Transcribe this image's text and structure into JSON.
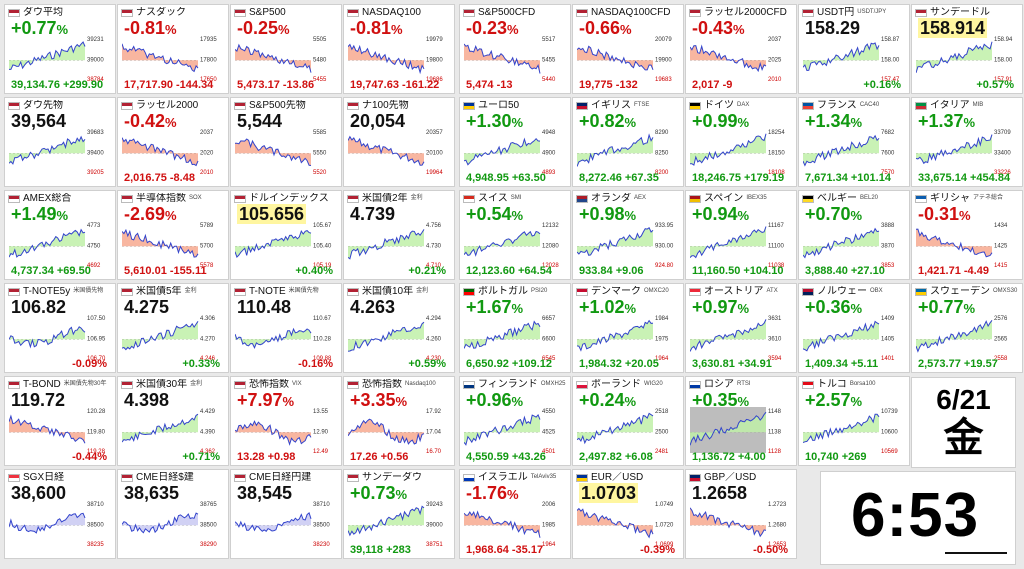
{
  "date": {
    "day": "6/21",
    "weekday": "金"
  },
  "clock": {
    "time": "6:53"
  },
  "colors": {
    "up": "#119911",
    "down": "#d01010",
    "upFill": "#bff0a8",
    "downFill": "#f7a98f",
    "line": "#3344cc"
  },
  "tiles": [
    {
      "name": "ダウ平均",
      "sub": "",
      "flag": "us",
      "big": "+0.77",
      "unit": "%",
      "bigColor": "pos",
      "bottom": "39,134.76 +299.90",
      "bottomColor": "pos",
      "trend": "up",
      "labels": [
        "39231",
        "39000",
        "38784"
      ]
    },
    {
      "name": "ナスダック",
      "sub": "",
      "flag": "us",
      "big": "-0.81",
      "unit": "%",
      "bigColor": "neg",
      "bottom": "17,717.90 -144.34",
      "bottomColor": "neg",
      "trend": "down",
      "labels": [
        "17935",
        "17800",
        "17650"
      ]
    },
    {
      "name": "S&P500",
      "sub": "",
      "flag": "us",
      "big": "-0.25",
      "unit": "%",
      "bigColor": "neg",
      "bottom": "5,473.17 -13.86",
      "bottomColor": "neg",
      "trend": "down",
      "labels": [
        "5505",
        "5480",
        "5455"
      ]
    },
    {
      "name": "NASDAQ100",
      "sub": "",
      "flag": "us",
      "big": "-0.81",
      "unit": "%",
      "bigColor": "neg",
      "bottom": "19,747.63 -161.22",
      "bottomColor": "neg",
      "trend": "down",
      "labels": [
        "19979",
        "19800",
        "19686"
      ]
    },
    {
      "name": "S&P500CFD",
      "sub": "",
      "flag": "us",
      "big": "-0.23",
      "unit": "%",
      "bigColor": "neg",
      "bottom": "5,474 -13",
      "bottomColor": "neg",
      "trend": "down",
      "labels": [
        "5517",
        "5455",
        "5440"
      ]
    },
    {
      "name": "NASDAQ100CFD",
      "sub": "",
      "flag": "us",
      "big": "-0.66",
      "unit": "%",
      "bigColor": "neg",
      "bottom": "19,775 -132",
      "bottomColor": "neg",
      "trend": "down",
      "labels": [
        "20079",
        "19900",
        "19683"
      ]
    },
    {
      "name": "ラッセル2000CFD",
      "sub": "",
      "flag": "us",
      "big": "-0.43",
      "unit": "%",
      "bigColor": "neg",
      "bottom": "2,017 -9",
      "bottomColor": "neg",
      "trend": "down",
      "labels": [
        "2037",
        "2025",
        "2010"
      ]
    },
    {
      "name": "USDT円",
      "sub": "USDT/JPY",
      "flag": "us",
      "big": "158.29",
      "unit": "",
      "bigColor": "blk",
      "bottom": "+0.16%",
      "bottomColor": "pos",
      "trend": "up",
      "labels": [
        "158.87",
        "158.00",
        "157.47"
      ]
    },
    {
      "name": "サンデードル",
      "sub": "",
      "flag": "us",
      "big": "158.914",
      "unit": "",
      "bigColor": "blk",
      "highlight": true,
      "bottom": "+0.57%",
      "bottomColor": "pos",
      "trend": "up",
      "labels": [
        "158.94",
        "158.00",
        "157.91"
      ]
    },
    {
      "name": "ダウ先物",
      "sub": "",
      "flag": "us",
      "big": "39,564",
      "unit": "",
      "bigColor": "blk",
      "bottom": "",
      "bottomColor": "pos",
      "trend": "up",
      "labels": [
        "39683",
        "39400",
        "39205"
      ]
    },
    {
      "name": "ラッセル2000",
      "sub": "",
      "flag": "us",
      "big": "-0.42",
      "unit": "%",
      "bigColor": "neg",
      "bottom": "2,016.75 -8.48",
      "bottomColor": "neg",
      "trend": "down",
      "labels": [
        "2037",
        "2020",
        "2010"
      ]
    },
    {
      "name": "S&P500先物",
      "sub": "",
      "flag": "us",
      "big": "5,544",
      "unit": "",
      "bigColor": "blk",
      "bottom": "",
      "bottomColor": "pos",
      "trend": "down",
      "labels": [
        "5585",
        "5550",
        "5520"
      ]
    },
    {
      "name": "ナ100先物",
      "sub": "",
      "flag": "us",
      "big": "20,054",
      "unit": "",
      "bigColor": "blk",
      "bottom": "",
      "bottomColor": "pos",
      "trend": "down",
      "labels": [
        "20357",
        "20100",
        "19964"
      ]
    },
    {
      "name": "ユーロ50",
      "sub": "",
      "flag": "eu",
      "big": "+1.30",
      "unit": "%",
      "bigColor": "pos",
      "bottom": "4,948.95 +63.50",
      "bottomColor": "pos",
      "trend": "up",
      "labels": [
        "4948",
        "4900",
        "4893"
      ]
    },
    {
      "name": "イギリス",
      "sub": "FTSE",
      "flag": "gb",
      "big": "+0.82",
      "unit": "%",
      "bigColor": "pos",
      "bottom": "8,272.46 +67.35",
      "bottomColor": "pos",
      "trend": "up",
      "labels": [
        "8290",
        "8250",
        "8200"
      ]
    },
    {
      "name": "ドイツ",
      "sub": "DAX",
      "flag": "de",
      "big": "+0.99",
      "unit": "%",
      "bigColor": "pos",
      "bottom": "18,246.75 +179.19",
      "bottomColor": "pos",
      "trend": "up",
      "labels": [
        "18254",
        "18150",
        "18108"
      ]
    },
    {
      "name": "フランス",
      "sub": "CAC40",
      "flag": "fr",
      "big": "+1.34",
      "unit": "%",
      "bigColor": "pos",
      "bottom": "7,671.34 +101.14",
      "bottomColor": "pos",
      "trend": "up",
      "labels": [
        "7682",
        "7600",
        "7570"
      ]
    },
    {
      "name": "イタリア",
      "sub": "MIB",
      "flag": "it",
      "big": "+1.37",
      "unit": "%",
      "bigColor": "pos",
      "bottom": "33,675.14 +454.84",
      "bottomColor": "pos",
      "trend": "up",
      "labels": [
        "33709",
        "33400",
        "33226"
      ]
    },
    {
      "name": "AMEX総合",
      "sub": "",
      "flag": "us",
      "big": "+1.49",
      "unit": "%",
      "bigColor": "pos",
      "bottom": "4,737.34 +69.50",
      "bottomColor": "pos",
      "trend": "up",
      "labels": [
        "4773",
        "4750",
        "4692"
      ]
    },
    {
      "name": "半導体指数",
      "sub": "SOX",
      "flag": "us",
      "big": "-2.69",
      "unit": "%",
      "bigColor": "neg",
      "bottom": "5,610.01 -155.11",
      "bottomColor": "neg",
      "trend": "down",
      "labels": [
        "5789",
        "5700",
        "5578"
      ]
    },
    {
      "name": "ドルインデックス",
      "sub": "",
      "flag": "us",
      "big": "105.656",
      "unit": "",
      "bigColor": "blk",
      "highlight": true,
      "bottom": "+0.40%",
      "bottomColor": "pos",
      "trend": "up",
      "labels": [
        "105.67",
        "105.40",
        "105.19"
      ]
    },
    {
      "name": "米国債2年",
      "sub": "金利",
      "flag": "us",
      "big": "4.739",
      "unit": "",
      "bigColor": "blk",
      "bottom": "+0.21%",
      "bottomColor": "pos",
      "trend": "up",
      "labels": [
        "4.756",
        "4.730",
        "4.710"
      ]
    },
    {
      "name": "スイス",
      "sub": "SMI",
      "flag": "ch",
      "big": "+0.54",
      "unit": "%",
      "bigColor": "pos",
      "bottom": "12,123.60 +64.54",
      "bottomColor": "pos",
      "trend": "up",
      "labels": [
        "12132",
        "12080",
        "12028"
      ]
    },
    {
      "name": "オランダ",
      "sub": "AEX",
      "flag": "nl",
      "big": "+0.98",
      "unit": "%",
      "bigColor": "pos",
      "bottom": "933.84 +9.06",
      "bottomColor": "pos",
      "trend": "up",
      "labels": [
        "933.95",
        "930.00",
        "924.80"
      ]
    },
    {
      "name": "スペイン",
      "sub": "IBEX35",
      "flag": "es",
      "big": "+0.94",
      "unit": "%",
      "bigColor": "pos",
      "bottom": "11,160.50 +104.10",
      "bottomColor": "pos",
      "trend": "up",
      "labels": [
        "11167",
        "11100",
        "11038"
      ]
    },
    {
      "name": "ベルギー",
      "sub": "BEL20",
      "flag": "be",
      "big": "+0.70",
      "unit": "%",
      "bigColor": "pos",
      "bottom": "3,888.40 +27.10",
      "bottomColor": "pos",
      "trend": "up",
      "labels": [
        "3888",
        "3870",
        "3853"
      ]
    },
    {
      "name": "ギリシャ",
      "sub": "アテネ総合",
      "flag": "gr",
      "big": "-0.31",
      "unit": "%",
      "bigColor": "neg",
      "bottom": "1,421.71 -4.49",
      "bottomColor": "neg",
      "trend": "down",
      "labels": [
        "1434",
        "1425",
        "1415"
      ]
    },
    {
      "name": "T-NOTE5y",
      "sub": "米国債先物",
      "flag": "us",
      "big": "106.82",
      "unit": "",
      "bigColor": "blk",
      "bottom": "-0.09%",
      "bottomColor": "neg",
      "trend": "flat",
      "labels": [
        "107.50",
        "106.95",
        "106.70"
      ]
    },
    {
      "name": "米国債5年",
      "sub": "金利",
      "flag": "us",
      "big": "4.275",
      "unit": "",
      "bigColor": "blk",
      "bottom": "+0.33%",
      "bottomColor": "pos",
      "trend": "up",
      "labels": [
        "4.306",
        "4.270",
        "4.246"
      ]
    },
    {
      "name": "T-NOTE",
      "sub": "米国債先物",
      "flag": "us",
      "big": "110.48",
      "unit": "",
      "bigColor": "blk",
      "bottom": "-0.16%",
      "bottomColor": "neg",
      "trend": "flat",
      "labels": [
        "110.67",
        "110.28",
        "109.88"
      ]
    },
    {
      "name": "米国債10年",
      "sub": "金利",
      "flag": "us",
      "big": "4.263",
      "unit": "",
      "bigColor": "blk",
      "bottom": "+0.59%",
      "bottomColor": "pos",
      "trend": "up",
      "labels": [
        "4.294",
        "4.260",
        "4.230"
      ]
    },
    {
      "name": "ポルトガル",
      "sub": "PSI20",
      "flag": "pt",
      "big": "+1.67",
      "unit": "%",
      "bigColor": "pos",
      "bottom": "6,650.92 +109.12",
      "bottomColor": "pos",
      "trend": "up",
      "labels": [
        "6657",
        "6600",
        "6545"
      ]
    },
    {
      "name": "デンマーク",
      "sub": "OMXC20",
      "flag": "dk",
      "big": "+1.02",
      "unit": "%",
      "bigColor": "pos",
      "bottom": "1,984.32 +20.05",
      "bottomColor": "pos",
      "trend": "up",
      "labels": [
        "1984",
        "1975",
        "1964"
      ]
    },
    {
      "name": "オーストリア",
      "sub": "ATX",
      "flag": "at",
      "big": "+0.97",
      "unit": "%",
      "bigColor": "pos",
      "bottom": "3,630.81 +34.91",
      "bottomColor": "pos",
      "trend": "up",
      "labels": [
        "3631",
        "3610",
        "3594"
      ]
    },
    {
      "name": "ノルウェー",
      "sub": "OBX",
      "flag": "no",
      "big": "+0.36",
      "unit": "%",
      "bigColor": "pos",
      "bottom": "1,409.34 +5.11",
      "bottomColor": "pos",
      "trend": "up",
      "labels": [
        "1409",
        "1405",
        "1401"
      ]
    },
    {
      "name": "スウェーデン",
      "sub": "OMXS30",
      "flag": "se",
      "big": "+0.77",
      "unit": "%",
      "bigColor": "pos",
      "bottom": "2,573.77 +19.57",
      "bottomColor": "pos",
      "trend": "up",
      "labels": [
        "2576",
        "2565",
        "2558"
      ]
    },
    {
      "name": "T-BOND",
      "sub": "米国債先物30年",
      "flag": "us",
      "big": "119.72",
      "unit": "",
      "bigColor": "blk",
      "bottom": "-0.44%",
      "bottomColor": "neg",
      "trend": "down",
      "labels": [
        "120.28",
        "119.80",
        "119.28"
      ]
    },
    {
      "name": "米国債30年",
      "sub": "金利",
      "flag": "us",
      "big": "4.398",
      "unit": "",
      "bigColor": "blk",
      "bottom": "+0.71%",
      "bottomColor": "pos",
      "trend": "up",
      "labels": [
        "4.429",
        "4.390",
        "4.362"
      ]
    },
    {
      "name": "恐怖指数",
      "sub": "VIX",
      "flag": "us",
      "big": "+7.97",
      "unit": "%",
      "bigColor": "neg",
      "bottom": "13.28 +0.98",
      "bottomColor": "neg",
      "trend": "downfill",
      "labels": [
        "13.55",
        "12.90",
        "12.49"
      ]
    },
    {
      "name": "恐怖指数",
      "sub": "Nasdaq100",
      "flag": "us",
      "big": "+3.35",
      "unit": "%",
      "bigColor": "neg",
      "bottom": "17.26 +0.56",
      "bottomColor": "neg",
      "trend": "downfill",
      "labels": [
        "17.92",
        "17.04",
        "16.70"
      ]
    },
    {
      "name": "フィンランド",
      "sub": "OMXH25",
      "flag": "fi",
      "big": "+0.96",
      "unit": "%",
      "bigColor": "pos",
      "bottom": "4,550.59 +43.26",
      "bottomColor": "pos",
      "trend": "up",
      "labels": [
        "4550",
        "4525",
        "4501"
      ]
    },
    {
      "name": "ポーランド",
      "sub": "WIG20",
      "flag": "pl",
      "big": "+0.24",
      "unit": "%",
      "bigColor": "pos",
      "bottom": "2,497.82 +6.08",
      "bottomColor": "pos",
      "trend": "up",
      "labels": [
        "2518",
        "2500",
        "2481"
      ]
    },
    {
      "name": "ロシア",
      "sub": "RTSI",
      "flag": "ru",
      "big": "+0.35",
      "unit": "%",
      "bigColor": "pos",
      "bottom": "1,136.72 +4.00",
      "bottomColor": "pos",
      "trend": "up",
      "dark": true,
      "labels": [
        "1148",
        "1138",
        "1128"
      ]
    },
    {
      "name": "トルコ",
      "sub": "Borsa100",
      "flag": "tr",
      "big": "+2.57",
      "unit": "%",
      "bigColor": "pos",
      "bottom": "10,740 +269",
      "bottomColor": "pos",
      "trend": "up",
      "labels": [
        "10739",
        "10600",
        "10569"
      ]
    },
    null,
    {
      "name": "SGX日経",
      "sub": "",
      "flag": "sg",
      "big": "38,600",
      "unit": "",
      "bigColor": "blk",
      "bottom": "",
      "bottomColor": "pos",
      "trend": "flatfill",
      "labels": [
        "38710",
        "38500",
        "38235"
      ]
    },
    {
      "name": "CME日経$建",
      "sub": "",
      "flag": "us",
      "big": "38,635",
      "unit": "",
      "bigColor": "blk",
      "bottom": "",
      "bottomColor": "pos",
      "trend": "flatfill",
      "labels": [
        "38765",
        "38500",
        "38290"
      ]
    },
    {
      "name": "CME日経円建",
      "sub": "",
      "flag": "us",
      "big": "38,545",
      "unit": "",
      "bigColor": "blk",
      "bottom": "",
      "bottomColor": "pos",
      "trend": "flatfill",
      "labels": [
        "38710",
        "38500",
        "38230"
      ]
    },
    {
      "name": "サンデーダウ",
      "sub": "",
      "flag": "us",
      "big": "+0.73",
      "unit": "%",
      "bigColor": "pos",
      "bottom": "39,118 +283",
      "bottomColor": "pos",
      "trend": "up",
      "labels": [
        "39243",
        "39000",
        "38751"
      ]
    },
    {
      "name": "イスラエル",
      "sub": "TelAviv35",
      "flag": "il",
      "big": "-1.76",
      "unit": "%",
      "bigColor": "neg",
      "bottom": "1,968.64 -35.17",
      "bottomColor": "neg",
      "trend": "down",
      "labels": [
        "2006",
        "1985",
        "1964"
      ]
    },
    {
      "name": "EUR／USD",
      "sub": "",
      "flag": "eu",
      "big": "1.0703",
      "unit": "",
      "bigColor": "blk",
      "highlight": true,
      "bottom": "-0.39%",
      "bottomColor": "neg",
      "trend": "down",
      "labels": [
        "1.0749",
        "1.0720",
        "1.0699"
      ]
    },
    {
      "name": "GBP／USD",
      "sub": "",
      "flag": "gb",
      "big": "1.2658",
      "unit": "",
      "bigColor": "blk",
      "bottom": "-0.50%",
      "bottomColor": "neg",
      "trend": "down",
      "labels": [
        "1.2723",
        "1.2680",
        "1.2653"
      ]
    }
  ]
}
